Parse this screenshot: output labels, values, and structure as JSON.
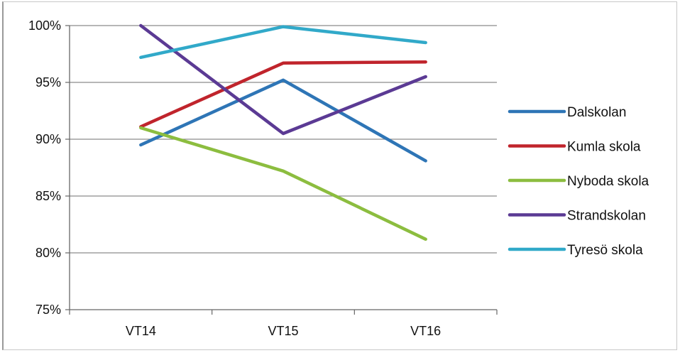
{
  "chart_data": {
    "type": "line",
    "title": "",
    "xlabel": "",
    "ylabel": "",
    "categories": [
      "VT14",
      "VT15",
      "VT16"
    ],
    "ylim": [
      0.75,
      1.0
    ],
    "yticks": [
      "75%",
      "80%",
      "85%",
      "90%",
      "95%",
      "100%"
    ],
    "grid": true,
    "legend_position": "right",
    "series": [
      {
        "name": "Dalskolan",
        "color": "#2e75b6",
        "values": [
          0.895,
          0.952,
          0.881
        ]
      },
      {
        "name": "Kumla skola",
        "color": "#c0242c",
        "values": [
          0.911,
          0.967,
          0.968
        ]
      },
      {
        "name": "Nyboda skola",
        "color": "#8cbd3f",
        "values": [
          0.91,
          0.872,
          0.812
        ]
      },
      {
        "name": "Strandskolan",
        "color": "#5b3a94",
        "values": [
          1.0,
          0.905,
          0.955
        ]
      },
      {
        "name": "Tyresö skola",
        "color": "#31a9c9",
        "values": [
          0.972,
          0.999,
          0.985
        ]
      }
    ]
  }
}
